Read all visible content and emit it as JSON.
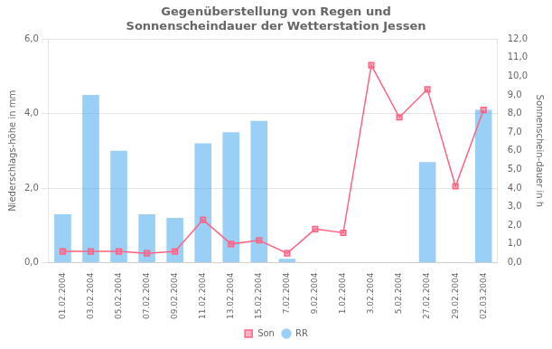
{
  "chart_data": {
    "type": "bar",
    "title": "Gegenüberstellung von Regen und",
    "subtitle": "Sonnenscheindauer der Wetterstation Jessen",
    "categories": [
      "01.02.2004",
      "03.02.2004",
      "05.02.2004",
      "07.02.2004",
      "09.02.2004",
      "11.02.2004",
      "13.02.2004",
      "15.02.2004",
      "7.02.2004",
      "9.02.2004",
      "1.02.2004",
      "3.02.2004",
      "5.02.2004",
      "27.02.2004",
      "29.02.2004",
      "02.03.2004"
    ],
    "series": [
      {
        "name": "RR",
        "type": "bar",
        "values": [
          1.3,
          4.5,
          3.0,
          1.3,
          1.2,
          3.2,
          3.5,
          3.8,
          0.1,
          0.0,
          0.0,
          0.0,
          0.0,
          2.7,
          0.0,
          4.1
        ]
      },
      {
        "name": "Son",
        "type": "line",
        "axis": "y2",
        "marker": "square",
        "line_style": "solid",
        "values": [
          0.6,
          0.6,
          0.6,
          0.5,
          0.6,
          2.3,
          1.0,
          1.2,
          0.5,
          1.8,
          1.6,
          10.6,
          7.8,
          9.3,
          4.1,
          8.2
        ]
      }
    ],
    "ylabel": "Niederschlags-höhe in mm",
    "y2label": "Sonnenschein-dauer in h",
    "ylim": [
      0.0,
      6.0
    ],
    "yticks": [
      {
        "value": 0.0,
        "label": "0,0"
      },
      {
        "value": 2.0,
        "label": "2,0"
      },
      {
        "value": 4.0,
        "label": "4,0"
      },
      {
        "value": 6.0,
        "label": "6,0"
      }
    ],
    "y2lim": [
      0.0,
      12.0
    ],
    "y2ticks": [
      {
        "value": 0.0,
        "label": "0,0"
      },
      {
        "value": 1.0,
        "label": "1,0"
      },
      {
        "value": 2.0,
        "label": "2,0"
      },
      {
        "value": 3.0,
        "label": "3,0"
      },
      {
        "value": 4.0,
        "label": "4,0"
      },
      {
        "value": 5.0,
        "label": "5,0"
      },
      {
        "value": 6.0,
        "label": "6,0"
      },
      {
        "value": 7.0,
        "label": "7,0"
      },
      {
        "value": 8.0,
        "label": "8,0"
      },
      {
        "value": 9.0,
        "label": "9,0"
      },
      {
        "value": 10.0,
        "label": "10,0"
      },
      {
        "value": 11.0,
        "label": "11,0"
      },
      {
        "value": 12.0,
        "label": "12,0"
      }
    ],
    "grid": true,
    "legend": "bottom"
  }
}
